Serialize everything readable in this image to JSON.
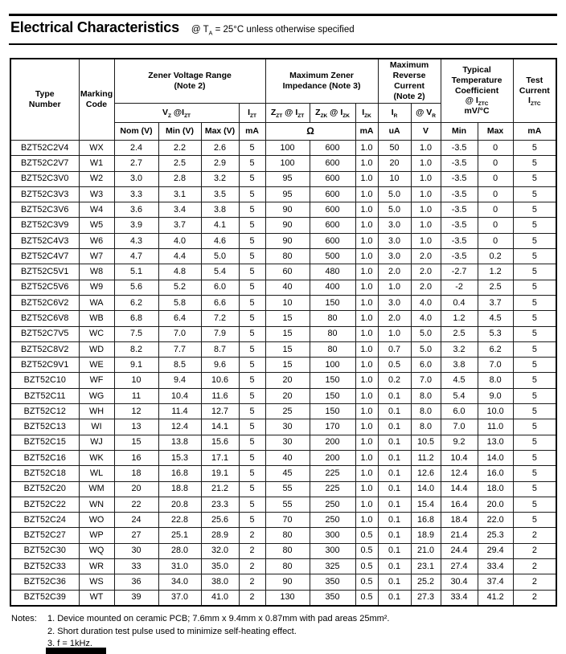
{
  "header": {
    "title": "Electrical Characteristics",
    "condition_html": "@ T<sub>A</sub> = 25&#176;C unless otherwise specified"
  },
  "table": {
    "groups": {
      "type_number_html": "Type<br>Number",
      "marking_code_html": "Marking<br>Code",
      "zener_voltage_range_html": "Zener Voltage Range<br>(Note 2)",
      "max_zener_impedance_html": "Maximum Zener<br>Impedance (Note 3)",
      "max_reverse_current_html": "Maximum<br>Reverse<br>Current<br>(Note 2)",
      "temp_coefficient_html": "Typical<br>Temperature<br>Coefficient<br>@ I<sub>ZTC</sub><br>mV/&#176;C",
      "test_current_html": "Test<br>Current<br>I<sub>ZTC</sub>"
    },
    "subheaders": {
      "vz_at_izt_html": "V<sub>Z</sub> @I<sub>ZT</sub>",
      "izt_html": "I<sub>ZT</sub>",
      "zzt_at_izt_html": "Z<sub>ZT</sub> @ I<sub>ZT</sub>",
      "zzk_at_izk_html": "Z<sub>ZK</sub> @ I<sub>ZK</sub>",
      "izk_html": "I<sub>ZK</sub>",
      "ir_html": "I<sub>R</sub>",
      "at_vr_html": "@ V<sub>R</sub>"
    },
    "units": {
      "nom": "Nom (V)",
      "min": "Min (V)",
      "max": "Max (V)",
      "izt_ma": "mA",
      "ohm": "Ω",
      "izk_ma": "mA",
      "ir_ua": "uA",
      "vr_v": "V",
      "tc_min": "Min",
      "tc_max": "Max",
      "test_ma": "mA"
    },
    "rows": [
      [
        "BZT52C2V4",
        "WX",
        "2.4",
        "2.2",
        "2.6",
        "5",
        "100",
        "600",
        "1.0",
        "50",
        "1.0",
        "-3.5",
        "0",
        "5"
      ],
      [
        "BZT52C2V7",
        "W1",
        "2.7",
        "2.5",
        "2.9",
        "5",
        "100",
        "600",
        "1.0",
        "20",
        "1.0",
        "-3.5",
        "0",
        "5"
      ],
      [
        "BZT52C3V0",
        "W2",
        "3.0",
        "2.8",
        "3.2",
        "5",
        "95",
        "600",
        "1.0",
        "10",
        "1.0",
        "-3.5",
        "0",
        "5"
      ],
      [
        "BZT52C3V3",
        "W3",
        "3.3",
        "3.1",
        "3.5",
        "5",
        "95",
        "600",
        "1.0",
        "5.0",
        "1.0",
        "-3.5",
        "0",
        "5"
      ],
      [
        "BZT52C3V6",
        "W4",
        "3.6",
        "3.4",
        "3.8",
        "5",
        "90",
        "600",
        "1.0",
        "5.0",
        "1.0",
        "-3.5",
        "0",
        "5"
      ],
      [
        "BZT52C3V9",
        "W5",
        "3.9",
        "3.7",
        "4.1",
        "5",
        "90",
        "600",
        "1.0",
        "3.0",
        "1.0",
        "-3.5",
        "0",
        "5"
      ],
      [
        "BZT52C4V3",
        "W6",
        "4.3",
        "4.0",
        "4.6",
        "5",
        "90",
        "600",
        "1.0",
        "3.0",
        "1.0",
        "-3.5",
        "0",
        "5"
      ],
      [
        "BZT52C4V7",
        "W7",
        "4.7",
        "4.4",
        "5.0",
        "5",
        "80",
        "500",
        "1.0",
        "3.0",
        "2.0",
        "-3.5",
        "0.2",
        "5"
      ],
      [
        "BZT52C5V1",
        "W8",
        "5.1",
        "4.8",
        "5.4",
        "5",
        "60",
        "480",
        "1.0",
        "2.0",
        "2.0",
        "-2.7",
        "1.2",
        "5"
      ],
      [
        "BZT52C5V6",
        "W9",
        "5.6",
        "5.2",
        "6.0",
        "5",
        "40",
        "400",
        "1.0",
        "1.0",
        "2.0",
        "-2",
        "2.5",
        "5"
      ],
      [
        "BZT52C6V2",
        "WA",
        "6.2",
        "5.8",
        "6.6",
        "5",
        "10",
        "150",
        "1.0",
        "3.0",
        "4.0",
        "0.4",
        "3.7",
        "5"
      ],
      [
        "BZT52C6V8",
        "WB",
        "6.8",
        "6.4",
        "7.2",
        "5",
        "15",
        "80",
        "1.0",
        "2.0",
        "4.0",
        "1.2",
        "4.5",
        "5"
      ],
      [
        "BZT52C7V5",
        "WC",
        "7.5",
        "7.0",
        "7.9",
        "5",
        "15",
        "80",
        "1.0",
        "1.0",
        "5.0",
        "2.5",
        "5.3",
        "5"
      ],
      [
        "BZT52C8V2",
        "WD",
        "8.2",
        "7.7",
        "8.7",
        "5",
        "15",
        "80",
        "1.0",
        "0.7",
        "5.0",
        "3.2",
        "6.2",
        "5"
      ],
      [
        "BZT52C9V1",
        "WE",
        "9.1",
        "8.5",
        "9.6",
        "5",
        "15",
        "100",
        "1.0",
        "0.5",
        "6.0",
        "3.8",
        "7.0",
        "5"
      ],
      [
        "BZT52C10",
        "WF",
        "10",
        "9.4",
        "10.6",
        "5",
        "20",
        "150",
        "1.0",
        "0.2",
        "7.0",
        "4.5",
        "8.0",
        "5"
      ],
      [
        "BZT52C11",
        "WG",
        "11",
        "10.4",
        "11.6",
        "5",
        "20",
        "150",
        "1.0",
        "0.1",
        "8.0",
        "5.4",
        "9.0",
        "5"
      ],
      [
        "BZT52C12",
        "WH",
        "12",
        "11.4",
        "12.7",
        "5",
        "25",
        "150",
        "1.0",
        "0.1",
        "8.0",
        "6.0",
        "10.0",
        "5"
      ],
      [
        "BZT52C13",
        "WI",
        "13",
        "12.4",
        "14.1",
        "5",
        "30",
        "170",
        "1.0",
        "0.1",
        "8.0",
        "7.0",
        "11.0",
        "5"
      ],
      [
        "BZT52C15",
        "WJ",
        "15",
        "13.8",
        "15.6",
        "5",
        "30",
        "200",
        "1.0",
        "0.1",
        "10.5",
        "9.2",
        "13.0",
        "5"
      ],
      [
        "BZT52C16",
        "WK",
        "16",
        "15.3",
        "17.1",
        "5",
        "40",
        "200",
        "1.0",
        "0.1",
        "11.2",
        "10.4",
        "14.0",
        "5"
      ],
      [
        "BZT52C18",
        "WL",
        "18",
        "16.8",
        "19.1",
        "5",
        "45",
        "225",
        "1.0",
        "0.1",
        "12.6",
        "12.4",
        "16.0",
        "5"
      ],
      [
        "BZT52C20",
        "WM",
        "20",
        "18.8",
        "21.2",
        "5",
        "55",
        "225",
        "1.0",
        "0.1",
        "14.0",
        "14.4",
        "18.0",
        "5"
      ],
      [
        "BZT52C22",
        "WN",
        "22",
        "20.8",
        "23.3",
        "5",
        "55",
        "250",
        "1.0",
        "0.1",
        "15.4",
        "16.4",
        "20.0",
        "5"
      ],
      [
        "BZT52C24",
        "WO",
        "24",
        "22.8",
        "25.6",
        "5",
        "70",
        "250",
        "1.0",
        "0.1",
        "16.8",
        "18.4",
        "22.0",
        "5"
      ],
      [
        "BZT52C27",
        "WP",
        "27",
        "25.1",
        "28.9",
        "2",
        "80",
        "300",
        "0.5",
        "0.1",
        "18.9",
        "21.4",
        "25.3",
        "2"
      ],
      [
        "BZT52C30",
        "WQ",
        "30",
        "28.0",
        "32.0",
        "2",
        "80",
        "300",
        "0.5",
        "0.1",
        "21.0",
        "24.4",
        "29.4",
        "2"
      ],
      [
        "BZT52C33",
        "WR",
        "33",
        "31.0",
        "35.0",
        "2",
        "80",
        "325",
        "0.5",
        "0.1",
        "23.1",
        "27.4",
        "33.4",
        "2"
      ],
      [
        "BZT52C36",
        "WS",
        "36",
        "34.0",
        "38.0",
        "2",
        "90",
        "350",
        "0.5",
        "0.1",
        "25.2",
        "30.4",
        "37.4",
        "2"
      ],
      [
        "BZT52C39",
        "WT",
        "39",
        "37.0",
        "41.0",
        "2",
        "130",
        "350",
        "0.5",
        "0.1",
        "27.3",
        "33.4",
        "41.2",
        "2"
      ]
    ]
  },
  "notes": {
    "label": "Notes:",
    "items": [
      "1. Device mounted on ceramic PCB; 7.6mm x 9.4mm x 0.87mm with pad areas 25mm².",
      "2. Short duration test pulse used to minimize self-heating effect.",
      "3. f = 1kHz."
    ]
  }
}
